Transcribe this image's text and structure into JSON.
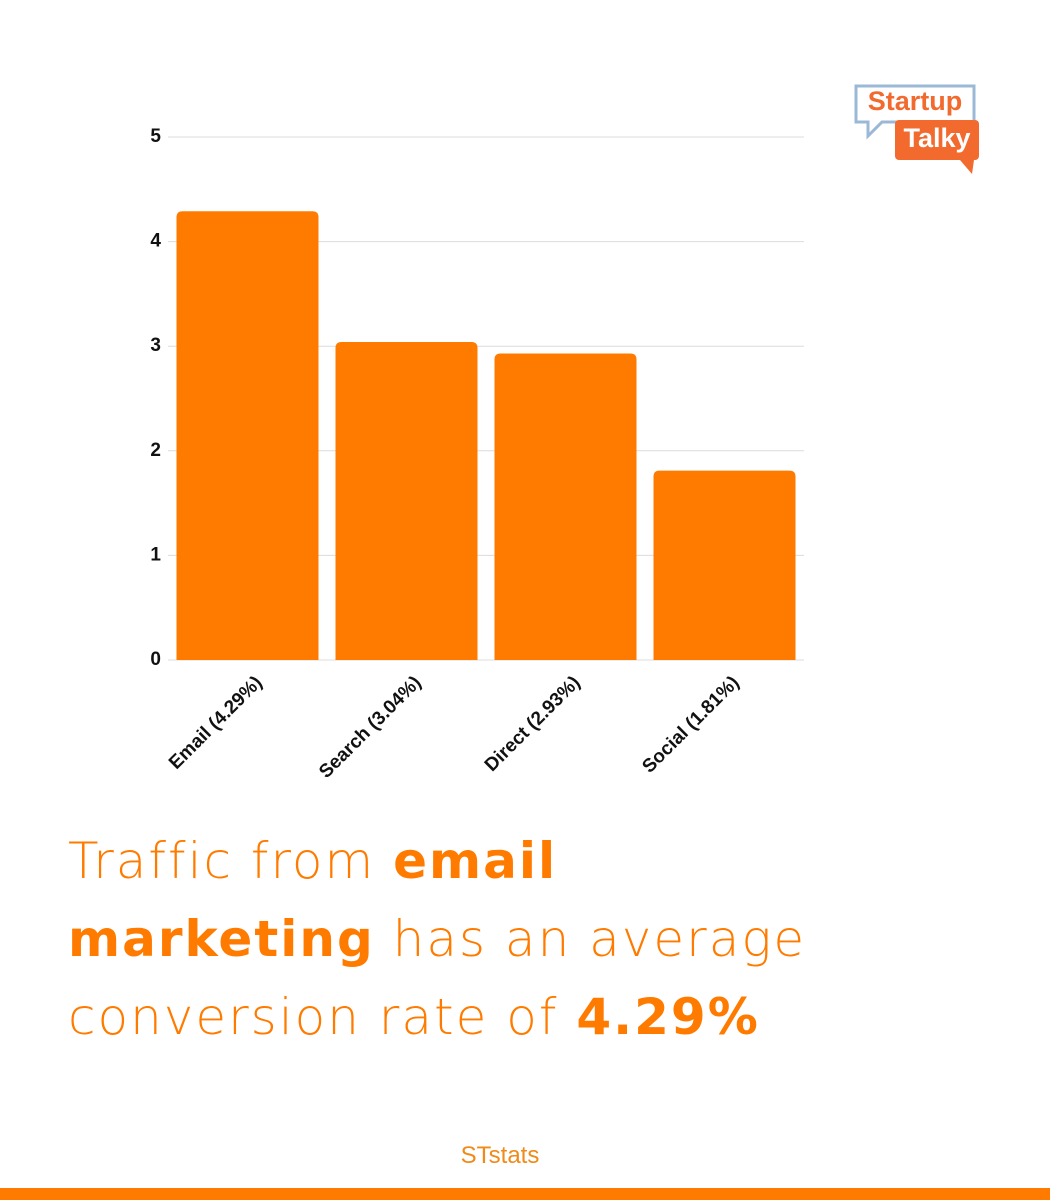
{
  "logo": {
    "line1": "Startup",
    "line2": "Talky"
  },
  "chart_data": {
    "type": "bar",
    "categories": [
      "Email (4.29%)",
      "Search (3.04%)",
      "Direct (2.93%)",
      "Social (1.81%)"
    ],
    "values": [
      4.29,
      3.04,
      2.93,
      1.81
    ],
    "color": "#ff7b00",
    "ylim": [
      0,
      5
    ],
    "yticks": [
      0,
      1,
      2,
      3,
      4,
      5
    ],
    "grid": true
  },
  "headline": {
    "part1": "Traffic from",
    "emphasis1": "email marketing",
    "part2": "has an average conversion rate of",
    "emphasis2": "4.29%"
  },
  "footer": "STstats"
}
